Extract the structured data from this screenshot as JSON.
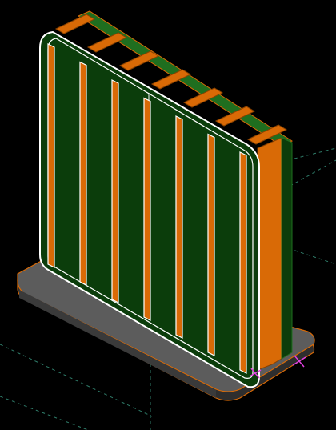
{
  "viewport": {
    "background": "#000000",
    "icons": [
      "origin-cross-marker",
      "end-cross-marker"
    ]
  },
  "model": {
    "board_green": "#0b3d0b",
    "copper_orange": "#d96a06",
    "copper_dark": "#8a4200",
    "base_grey": "#5c5c5c",
    "base_dark": "#2e2e2e",
    "outline_white": "#ffffff",
    "axis_line_color": "#2f7d6a",
    "marker_color": "#e040e0",
    "divider_count": 7,
    "front_slot_count": 7
  }
}
